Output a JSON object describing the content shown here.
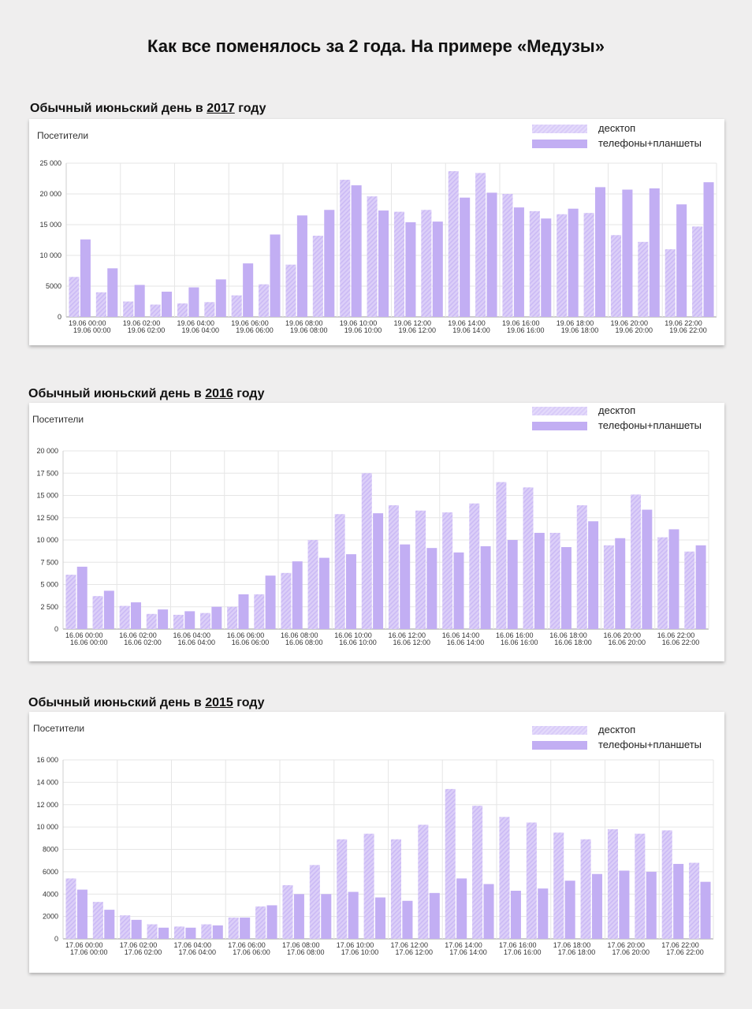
{
  "page_title": "Как все поменялось за 2 года. На примере «Медузы»",
  "colors": {
    "desktop": "#dccff8",
    "desktop_stripe": "#cbbaf5",
    "mobile": "#c2aef3",
    "grid": "#e6e6e6",
    "axis": "#9a9a9a"
  },
  "legend": {
    "desktop": "десктоп",
    "mobile": "телефоны+планшеты"
  },
  "charts": [
    {
      "title_prefix": "Обычный июньский день в ",
      "year": "2017",
      "title_suffix": " году",
      "ylabel": "Посетители"
    },
    {
      "title_prefix": "Обычный июньский день в ",
      "year": "2016",
      "title_suffix": " году",
      "ylabel": "Посетители"
    },
    {
      "title_prefix": "Обычный июньский день в ",
      "year": "2015",
      "title_suffix": " году",
      "ylabel": "Посетители"
    }
  ],
  "chart_data": [
    {
      "type": "bar",
      "title": "Обычный июньский день в 2017 году",
      "ylabel": "Посетители",
      "ylim": [
        0,
        25000
      ],
      "yticks": [
        "0",
        "5000",
        "10 000",
        "15 000",
        "20 000",
        "25 000"
      ],
      "yvalues": [
        0,
        5000,
        10000,
        15000,
        20000,
        25000
      ],
      "xtick_labels": [
        [
          "19.06 00:00",
          "19.06 00:00"
        ],
        [
          "19.06 02:00",
          "19.06 02:00"
        ],
        [
          "19.06 04:00",
          "19.06 04:00"
        ],
        [
          "19.06 06:00",
          "19.06 06:00"
        ],
        [
          "19.06 08:00",
          "19.06 08:00"
        ],
        [
          "19.06 10:00",
          "19.06 10:00"
        ],
        [
          "19.06 12:00",
          "19.06 12:00"
        ],
        [
          "19.06 14:00",
          "19.06 14:00"
        ],
        [
          "19.06 16:00",
          "19.06 16:00"
        ],
        [
          "19.06 18:00",
          "19.06 18:00"
        ],
        [
          "19.06 20:00",
          "19.06 20:00"
        ],
        [
          "19.06 22:00",
          "19.06 22:00"
        ]
      ],
      "grid": true,
      "legend_position": "top-right",
      "series": [
        {
          "name": "десктоп",
          "values": [
            6500,
            4000,
            2500,
            2000,
            2200,
            2400,
            3500,
            5300,
            8500,
            13200,
            22300,
            19600,
            17100,
            17400,
            23700,
            23400,
            20000,
            17200,
            16700,
            16900,
            13300,
            12200,
            11000,
            14700
          ]
        },
        {
          "name": "телефоны+планшеты",
          "values": [
            12600,
            7900,
            5200,
            4100,
            4800,
            6100,
            8700,
            13400,
            16500,
            17400,
            21400,
            17300,
            15400,
            15500,
            19400,
            20200,
            17800,
            16000,
            17600,
            21100,
            20700,
            20900,
            18300,
            21900
          ]
        }
      ]
    },
    {
      "type": "bar",
      "title": "Обычный июньский день в 2016 году",
      "ylabel": "Посетители",
      "ylim": [
        0,
        20000
      ],
      "yticks": [
        "0",
        "2 500",
        "5 000",
        "7 500",
        "10 000",
        "12 500",
        "15 000",
        "17 500",
        "20 000"
      ],
      "yvalues": [
        0,
        2500,
        5000,
        7500,
        10000,
        12500,
        15000,
        17500,
        20000
      ],
      "xtick_labels": [
        [
          "16.06 00:00",
          "16.06 00:00"
        ],
        [
          "16.06 02:00",
          "16.06 02:00"
        ],
        [
          "16.06 04:00",
          "16.06 04:00"
        ],
        [
          "16.06 06:00",
          "16.06 06:00"
        ],
        [
          "16.06 08:00",
          "16.06 08:00"
        ],
        [
          "16.06 10:00",
          "16.06 10:00"
        ],
        [
          "16.06 12:00",
          "16.06 12:00"
        ],
        [
          "16.06 14:00",
          "16.06 14:00"
        ],
        [
          "16.06 16:00",
          "16.06 16:00"
        ],
        [
          "16.06 18:00",
          "16.06 18:00"
        ],
        [
          "16.06 20:00",
          "16.06 20:00"
        ],
        [
          "16.06 22:00",
          "16.06 22:00"
        ]
      ],
      "grid": true,
      "legend_position": "top-right",
      "series": [
        {
          "name": "десктоп",
          "values": [
            6100,
            3700,
            2600,
            1700,
            1600,
            1800,
            2500,
            3900,
            6300,
            10000,
            12900,
            17500,
            13900,
            13300,
            13100,
            14100,
            16500,
            15900,
            10800,
            13900,
            9400,
            15100,
            10300,
            8700
          ]
        },
        {
          "name": "телефоны+планшеты",
          "values": [
            7000,
            4300,
            3000,
            2200,
            2000,
            2500,
            3900,
            6000,
            7600,
            8000,
            8400,
            13000,
            9500,
            9100,
            8600,
            9300,
            10000,
            10800,
            9200,
            12100,
            10200,
            13400,
            11200,
            9400
          ]
        }
      ]
    },
    {
      "type": "bar",
      "title": "Обычный июньский день в 2015 году",
      "ylabel": "Посетители",
      "ylim": [
        0,
        16000
      ],
      "yticks": [
        "0",
        "2000",
        "4000",
        "6000",
        "8000",
        "10 000",
        "12 000",
        "14 000",
        "16 000"
      ],
      "yvalues": [
        0,
        2000,
        4000,
        6000,
        8000,
        10000,
        12000,
        14000,
        16000
      ],
      "xtick_labels": [
        [
          "17.06 00:00",
          "17.06 00:00"
        ],
        [
          "17.06 02:00",
          "17.06 02:00"
        ],
        [
          "17.06 04:00",
          "17.06 04:00"
        ],
        [
          "17.06 06:00",
          "17.06 06:00"
        ],
        [
          "17.06 08:00",
          "17.06 08:00"
        ],
        [
          "17.06 10:00",
          "17.06 10:00"
        ],
        [
          "17.06 12:00",
          "17.06 12:00"
        ],
        [
          "17.06 14:00",
          "17.06 14:00"
        ],
        [
          "17.06 16:00",
          "17.06 16:00"
        ],
        [
          "17.06 18:00",
          "17.06 18:00"
        ],
        [
          "17.06 20:00",
          "17.06 20:00"
        ],
        [
          "17.06 22:00",
          "17.06 22:00"
        ]
      ],
      "grid": true,
      "legend_position": "top-right",
      "series": [
        {
          "name": "десктоп",
          "values": [
            5400,
            3300,
            2100,
            1300,
            1100,
            1300,
            1900,
            2900,
            4800,
            6600,
            8900,
            9400,
            8900,
            10200,
            13400,
            11900,
            10900,
            10400,
            9500,
            8900,
            9800,
            9400,
            9700,
            6800
          ]
        },
        {
          "name": "телефоны+планшеты",
          "values": [
            4400,
            2600,
            1700,
            1000,
            1000,
            1200,
            1900,
            3000,
            4000,
            4000,
            4200,
            3700,
            3400,
            4100,
            5400,
            4900,
            4300,
            4500,
            5200,
            5800,
            6100,
            6000,
            6700,
            5100
          ]
        }
      ]
    }
  ]
}
